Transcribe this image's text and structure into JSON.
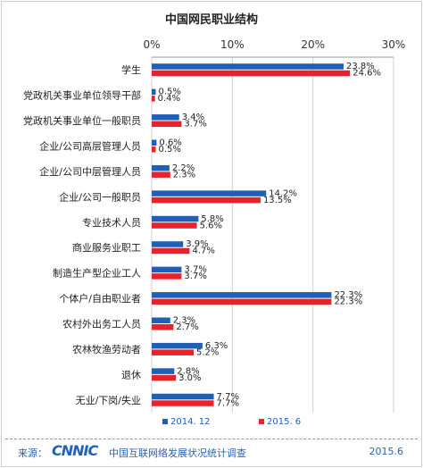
{
  "chart_data": {
    "type": "bar",
    "orientation": "horizontal",
    "title": "中国网民职业结构",
    "axis": {
      "xlim": [
        0,
        30
      ],
      "ticks": [
        0,
        10,
        20,
        30
      ],
      "tick_labels": [
        "0%",
        "10%",
        "20%",
        "30%"
      ],
      "position": "top",
      "grid": true
    },
    "categories": [
      "学生",
      "党政机关事业单位领导干部",
      "党政机关事业单位一般职员",
      "企业/公司高层管理人员",
      "企业/公司中层管理人员",
      "企业/公司一般职员",
      "专业技术人员",
      "商业服务业职工",
      "制造生产型企业工人",
      "个体户/自由职业者",
      "农村外出务工人员",
      "农林牧渔劳动者",
      "退休",
      "无业/下岗/失业"
    ],
    "series": [
      {
        "name": "2014. 12",
        "color": "#1f5fb4",
        "values": [
          23.8,
          0.5,
          3.4,
          0.6,
          2.2,
          14.2,
          5.8,
          3.9,
          3.7,
          22.3,
          2.3,
          6.3,
          2.8,
          7.7
        ],
        "labels": [
          "23.8%",
          "0.5%",
          "3.4%",
          "0.6%",
          "2.2%",
          "14.2%",
          "5.8%",
          "3.9%",
          "3.7%",
          "22.3%",
          "2.3%",
          "6.3%",
          "2.8%",
          "7.7%"
        ]
      },
      {
        "name": "2015. 6",
        "color": "#e8222b",
        "values": [
          24.6,
          0.4,
          3.7,
          0.5,
          2.3,
          13.5,
          5.6,
          4.7,
          3.7,
          22.3,
          2.7,
          5.2,
          3.0,
          7.7
        ],
        "labels": [
          "24.6%",
          "0.4%",
          "3.7%",
          "0.5%",
          "2.3%",
          "13.5%",
          "5.6%",
          "4.7%",
          "3.7%",
          "22.3%",
          "2.7%",
          "5.2%",
          "3.0%",
          "7.7%"
        ]
      }
    ],
    "legend": "bottom"
  },
  "footer": {
    "source_label": "来源：",
    "logo_text": "CNNIC",
    "source_text": "中国互联网络发展状况统计调查",
    "date": "2015.6"
  }
}
